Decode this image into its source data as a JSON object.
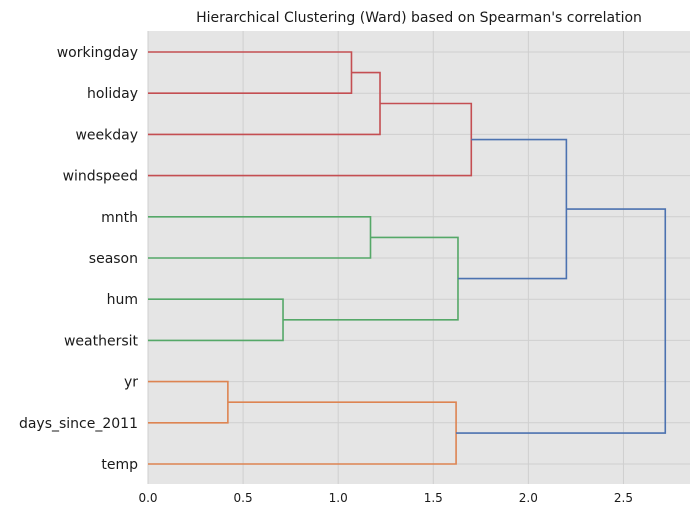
{
  "chart_data": {
    "type": "dendrogram",
    "title": "Hierarchical Clustering (Ward) based on Spearman's correlation",
    "xlabel": "",
    "ylabel": "",
    "xlim": [
      0,
      2.85
    ],
    "xticks": [
      0.0,
      0.5,
      1.0,
      1.5,
      2.0,
      2.5
    ],
    "xtick_labels": [
      "0.0",
      "0.5",
      "1.0",
      "1.5",
      "2.0",
      "2.5"
    ],
    "grid": true,
    "leaves": [
      "workingday",
      "holiday",
      "weekday",
      "windspeed",
      "mnth",
      "season",
      "hum",
      "weathersit",
      "yr",
      "days_since_2011",
      "temp"
    ],
    "cluster_colors": {
      "red": "#c44e52",
      "green": "#55a868",
      "orange": "#dd8452",
      "blue": "#4c72b0"
    },
    "links": [
      {
        "left": "workingday",
        "right": "holiday",
        "height": 1.07,
        "color": "red"
      },
      {
        "left": "link0",
        "right": "weekday",
        "height": 1.22,
        "color": "red"
      },
      {
        "left": "link1",
        "right": "windspeed",
        "height": 1.7,
        "color": "red"
      },
      {
        "left": "mnth",
        "right": "season",
        "height": 1.17,
        "color": "green"
      },
      {
        "left": "hum",
        "right": "weathersit",
        "height": 0.71,
        "color": "green"
      },
      {
        "left": "link3",
        "right": "link4",
        "height": 1.63,
        "color": "green"
      },
      {
        "left": "link2",
        "right": "link5",
        "height": 2.2,
        "color": "blue"
      },
      {
        "left": "yr",
        "right": "days_since_2011",
        "height": 0.42,
        "color": "orange"
      },
      {
        "left": "link7",
        "right": "temp",
        "height": 1.62,
        "color": "orange"
      },
      {
        "left": "link6",
        "right": "link8",
        "height": 2.72,
        "color": "blue"
      }
    ]
  }
}
